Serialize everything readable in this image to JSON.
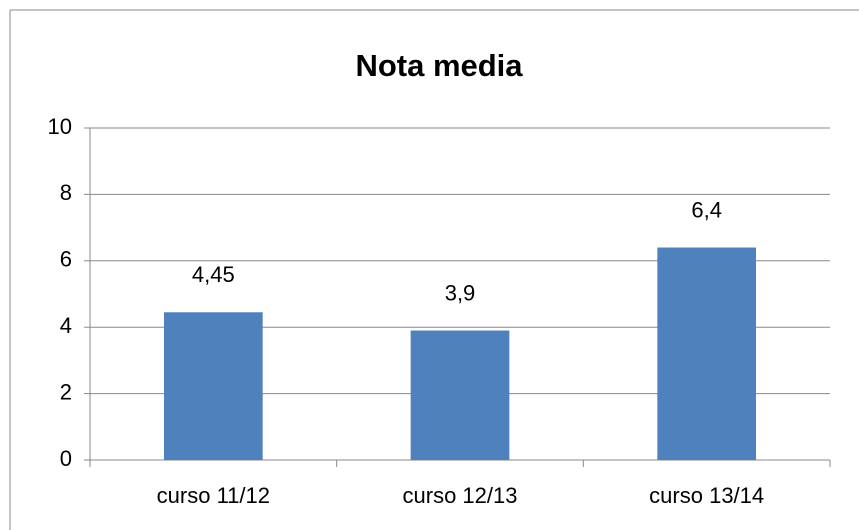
{
  "chart_data": {
    "type": "bar",
    "title": "Nota media",
    "categories": [
      "curso 11/12",
      "curso 12/13",
      "curso 13/14"
    ],
    "values": [
      4.45,
      3.9,
      6.4
    ],
    "value_labels": [
      "4,45",
      "3,9",
      "6,4"
    ],
    "color": "#4f81bd",
    "ylim": [
      0,
      10
    ],
    "yticks": [
      0,
      2,
      4,
      6,
      8,
      10
    ],
    "grid": true
  }
}
